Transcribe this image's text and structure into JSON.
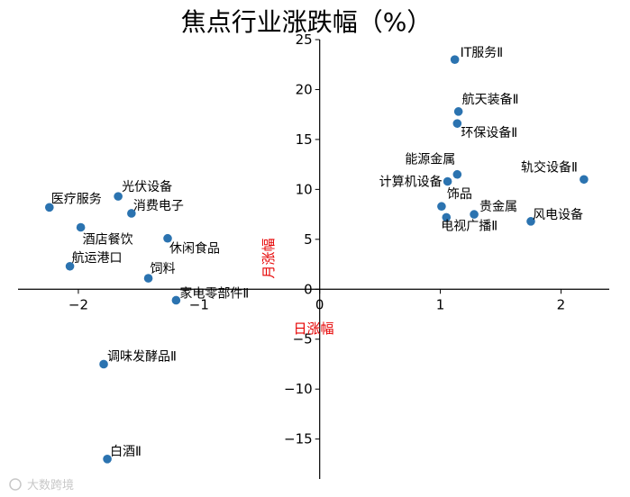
{
  "chart_data": {
    "type": "scatter",
    "title": "焦点行业涨跌幅（%）",
    "xlabel": "日涨幅",
    "ylabel": "月涨幅",
    "xlim": [
      -2.5,
      2.4
    ],
    "ylim": [
      -19,
      25
    ],
    "xticks": [
      -2,
      -1,
      0,
      1,
      2
    ],
    "yticks": [
      -15,
      -10,
      -5,
      0,
      5,
      10,
      15,
      20,
      25
    ],
    "color": "#2b73b0",
    "points": [
      {
        "label": "IT服务Ⅱ",
        "x": 1.12,
        "y": 23.0
      },
      {
        "label": "航天装备Ⅱ",
        "x": 1.15,
        "y": 17.8
      },
      {
        "label": "环保设备Ⅱ",
        "x": 1.14,
        "y": 16.6
      },
      {
        "label": "能源金属",
        "x": 1.14,
        "y": 11.5
      },
      {
        "label": "轨交设备Ⅱ",
        "x": 2.19,
        "y": 11.0
      },
      {
        "label": "计算机设备",
        "x": 1.06,
        "y": 10.8
      },
      {
        "label": "饰品",
        "x": 1.01,
        "y": 8.3
      },
      {
        "label": "贵金属",
        "x": 1.28,
        "y": 7.5
      },
      {
        "label": "电视广播Ⅱ",
        "x": 1.05,
        "y": 7.2
      },
      {
        "label": "风电设备",
        "x": 1.75,
        "y": 6.8
      },
      {
        "label": "医疗服务",
        "x": -2.24,
        "y": 8.2
      },
      {
        "label": "光伏设备",
        "x": -1.67,
        "y": 9.3
      },
      {
        "label": "消费电子",
        "x": -1.56,
        "y": 7.6
      },
      {
        "label": "酒店餐饮",
        "x": -1.98,
        "y": 6.2
      },
      {
        "label": "休闲食品",
        "x": -1.26,
        "y": 5.1
      },
      {
        "label": "航运港口",
        "x": -2.07,
        "y": 2.3
      },
      {
        "label": "饲料",
        "x": -1.42,
        "y": 1.1
      },
      {
        "label": "家电零部件Ⅱ",
        "x": -1.19,
        "y": -1.1
      },
      {
        "label": "调味发酵品Ⅱ",
        "x": -1.79,
        "y": -7.5
      },
      {
        "label": "白酒Ⅱ",
        "x": -1.76,
        "y": -17.0
      }
    ]
  },
  "watermark": "大数跨境"
}
